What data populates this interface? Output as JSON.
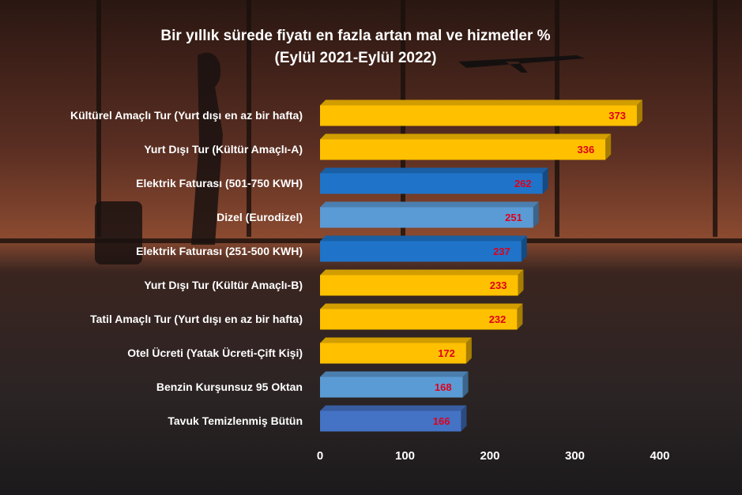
{
  "chart_data": {
    "type": "bar",
    "orientation": "horizontal",
    "title": "Bir yıllık sürede fiyatı en fazla artan mal ve hizmetler %",
    "subtitle": "(Eylül 2021-Eylül 2022)",
    "categories": [
      "Kültürel Amaçlı Tur (Yurt dışı en az bir hafta)",
      "Yurt Dışı Tur (Kültür Amaçlı-A)",
      "Elektrik Faturası (501-750 KWH)",
      "Dizel (Eurodizel)",
      "Elektrik Faturası (251-500 KWH)",
      "Yurt Dışı Tur (Kültür Amaçlı-B)",
      "Tatil Amaçlı Tur (Yurt dışı en az bir hafta)",
      "Otel Ücreti (Yatak Ücreti-Çift Kişi)",
      "Benzin Kurşunsuz 95 Oktan",
      "Tavuk Temizlenmiş Bütün"
    ],
    "values": [
      373,
      336,
      262,
      251,
      237,
      233,
      232,
      172,
      168,
      166
    ],
    "colors": [
      "#ffc000",
      "#ffc000",
      "#1f74c9",
      "#5b9bd5",
      "#1f74c9",
      "#ffc000",
      "#ffc000",
      "#ffc000",
      "#5b9bd5",
      "#4472c4"
    ],
    "value_label_color": "#e0001b",
    "xlim": [
      0,
      400
    ],
    "xticks": [
      0,
      100,
      200,
      300,
      400
    ]
  }
}
